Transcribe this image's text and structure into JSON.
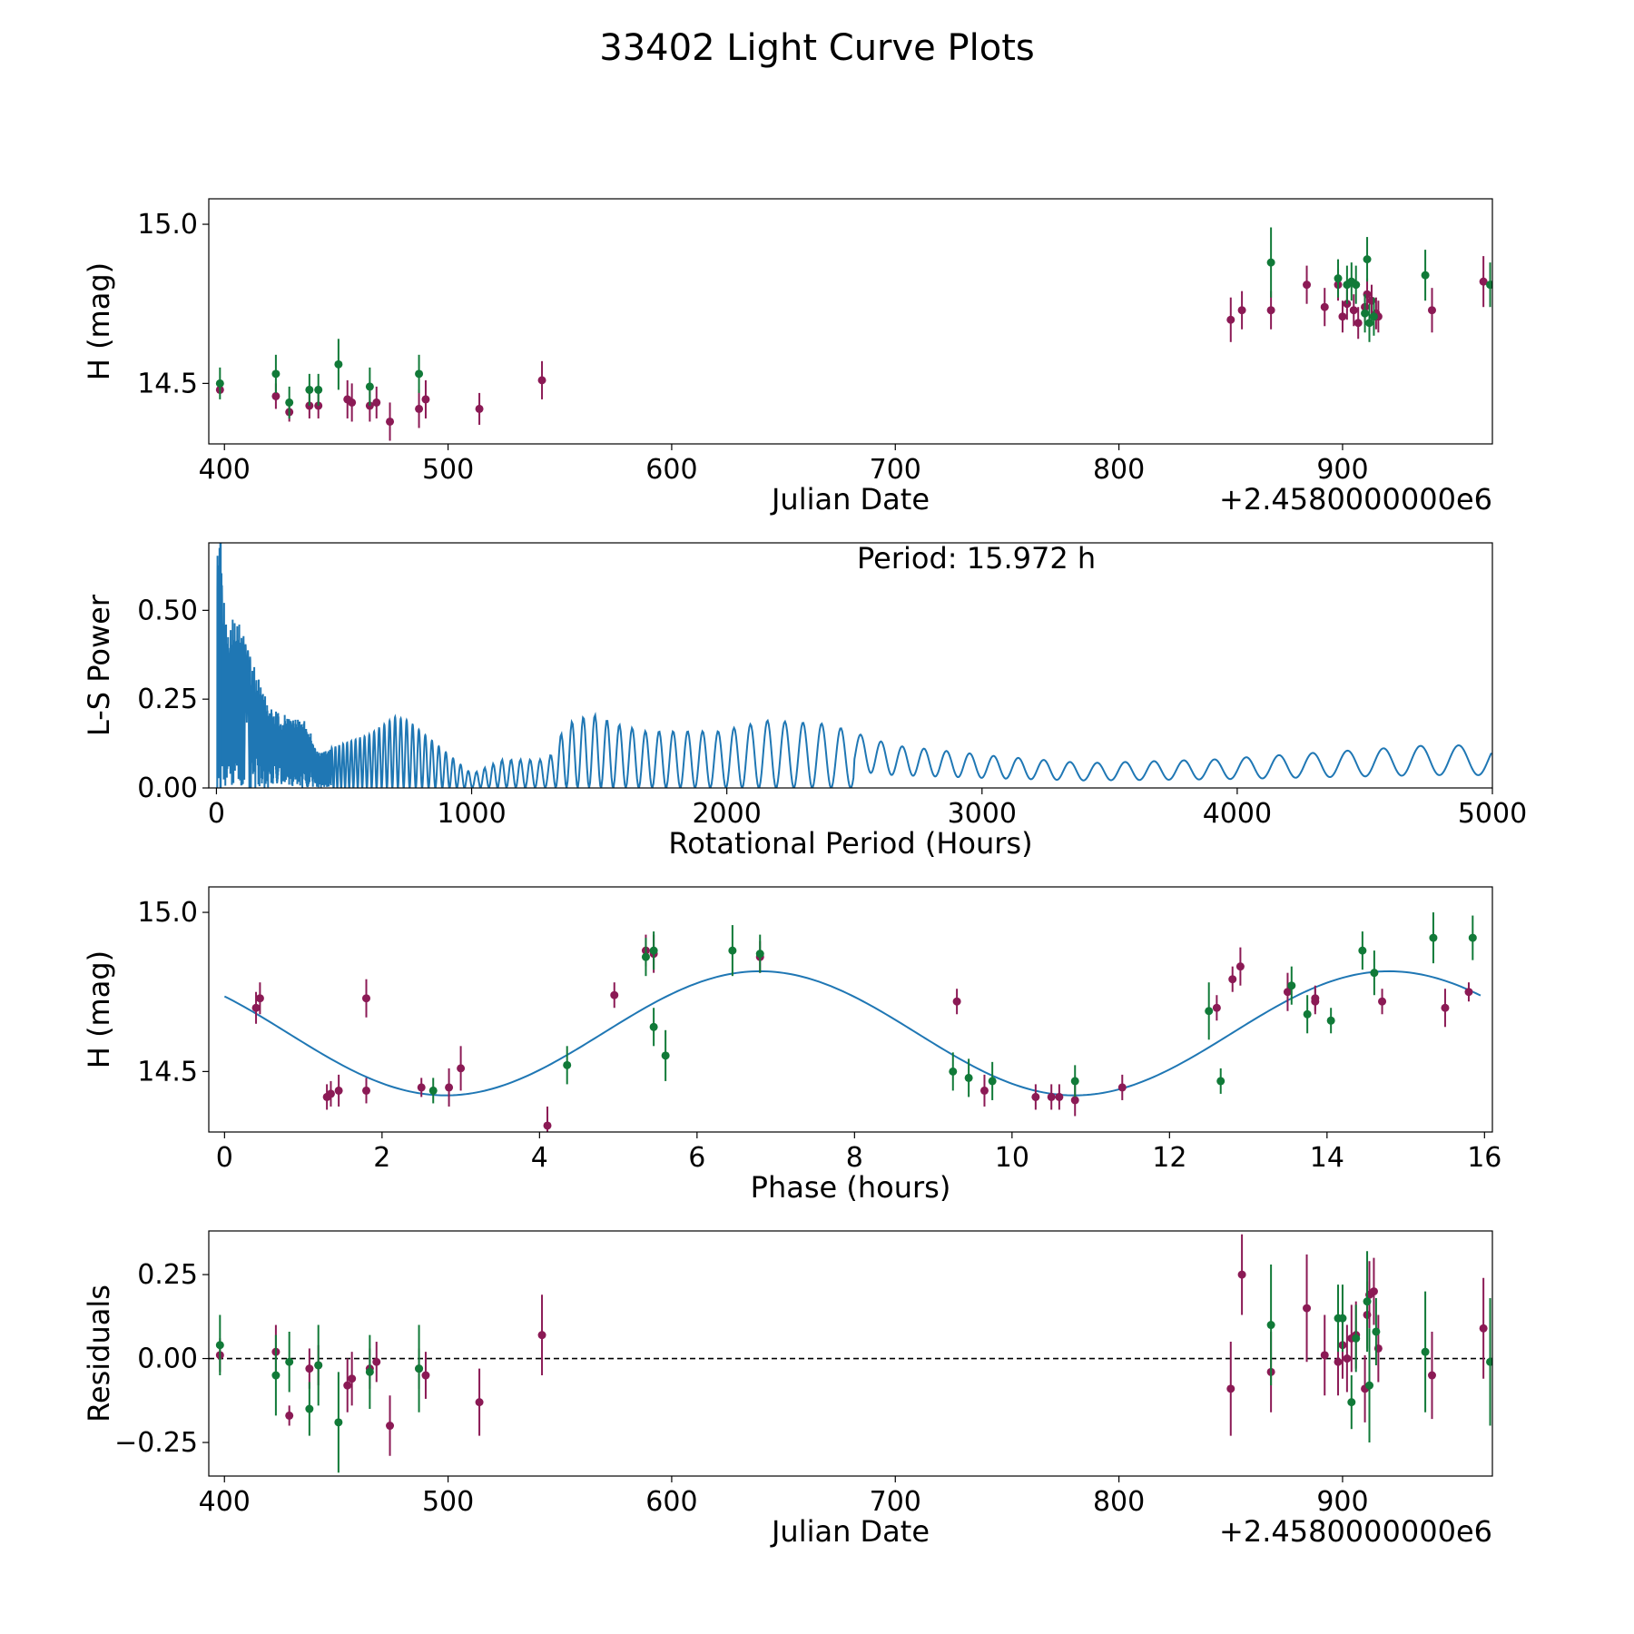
{
  "figure": {
    "title": "33402 Light Curve Plots"
  },
  "colors": {
    "magenta": "#8b1a55",
    "green": "#117a38",
    "model": "#1f77b4",
    "axes": "#000000"
  },
  "chart_data": [
    {
      "id": "lightcurve",
      "type": "scatter",
      "title": "",
      "xlabel": "Julian Date",
      "ylabel": "H (mag)",
      "offset_label": "+2.4580000000e6",
      "xlim": [
        393,
        967
      ],
      "ylim": [
        14.31,
        15.08
      ],
      "xticks": [
        400,
        500,
        600,
        700,
        800,
        900
      ],
      "xtick_labels": [
        "400",
        "500",
        "600",
        "700",
        "800",
        "900"
      ],
      "yticks": [
        14.5,
        15.0
      ],
      "ytick_labels": [
        "14.5",
        "15.0"
      ],
      "series": [
        {
          "name": "magenta",
          "color": "#8b1a55",
          "points": [
            [
              398,
              14.48,
              0.0
            ],
            [
              423,
              14.46,
              0.04
            ],
            [
              429,
              14.41,
              0.03
            ],
            [
              438,
              14.43,
              0.04
            ],
            [
              442,
              14.43,
              0.04
            ],
            [
              455,
              14.45,
              0.06
            ],
            [
              457,
              14.44,
              0.06
            ],
            [
              465,
              14.43,
              0.05
            ],
            [
              468,
              14.44,
              0.05
            ],
            [
              474,
              14.38,
              0.06
            ],
            [
              487,
              14.42,
              0.06
            ],
            [
              490,
              14.45,
              0.06
            ],
            [
              514,
              14.42,
              0.05
            ],
            [
              542,
              14.51,
              0.06
            ],
            [
              850,
              14.7,
              0.07
            ],
            [
              855,
              14.73,
              0.06
            ],
            [
              868,
              14.73,
              0.06
            ],
            [
              884,
              14.81,
              0.06
            ],
            [
              892,
              14.74,
              0.06
            ],
            [
              898,
              14.81,
              0.05
            ],
            [
              900,
              14.71,
              0.05
            ],
            [
              902,
              14.75,
              0.05
            ],
            [
              905,
              14.73,
              0.05
            ],
            [
              907,
              14.69,
              0.05
            ],
            [
              910,
              14.74,
              0.05
            ],
            [
              911,
              14.78,
              0.05
            ],
            [
              913,
              14.76,
              0.05
            ],
            [
              915,
              14.72,
              0.05
            ],
            [
              916,
              14.71,
              0.05
            ],
            [
              963,
              14.82,
              0.08
            ],
            [
              940,
              14.73,
              0.07
            ]
          ]
        },
        {
          "name": "green",
          "color": "#117a38",
          "points": [
            [
              398,
              14.5,
              0.05
            ],
            [
              423,
              14.53,
              0.06
            ],
            [
              429,
              14.44,
              0.05
            ],
            [
              438,
              14.48,
              0.05
            ],
            [
              442,
              14.48,
              0.05
            ],
            [
              451,
              14.56,
              0.08
            ],
            [
              465,
              14.49,
              0.06
            ],
            [
              487,
              14.53,
              0.06
            ],
            [
              868,
              14.88,
              0.11
            ],
            [
              898,
              14.83,
              0.06
            ],
            [
              902,
              14.81,
              0.06
            ],
            [
              904,
              14.82,
              0.06
            ],
            [
              906,
              14.81,
              0.06
            ],
            [
              910,
              14.72,
              0.06
            ],
            [
              911,
              14.89,
              0.07
            ],
            [
              912,
              14.69,
              0.06
            ],
            [
              914,
              14.71,
              0.06
            ],
            [
              937,
              14.84,
              0.08
            ],
            [
              966,
              14.81,
              0.07
            ]
          ]
        }
      ]
    },
    {
      "id": "periodogram",
      "type": "line",
      "title": "",
      "xlabel": "Rotational Period (Hours)",
      "ylabel": "L-S Power",
      "annotation": "Period: 15.972 h",
      "xlim": [
        -30,
        5000
      ],
      "ylim": [
        0,
        0.69
      ],
      "xticks": [
        0,
        1000,
        2000,
        3000,
        4000,
        5000
      ],
      "xtick_labels": [
        "0",
        "1000",
        "2000",
        "3000",
        "4000",
        "5000"
      ],
      "yticks": [
        0.0,
        0.25,
        0.5
      ],
      "ytick_labels": [
        "0.00",
        "0.25",
        "0.50"
      ],
      "series": [
        {
          "name": "L-S power",
          "color": "#1f77b4",
          "peaks": [
            [
              15.97,
              0.69
            ],
            [
              40,
              0.44
            ],
            [
              75,
              0.49
            ],
            [
              110,
              0.42
            ],
            [
              150,
              0.34
            ],
            [
              200,
              0.24
            ],
            [
              250,
              0.21
            ],
            [
              300,
              0.2
            ],
            [
              350,
              0.19
            ],
            [
              400,
              0.1
            ],
            [
              600,
              0.15
            ],
            [
              700,
              0.2
            ],
            [
              750,
              0.19
            ],
            [
              1000,
              0.04
            ],
            [
              1060,
              0.06
            ],
            [
              1120,
              0.08
            ],
            [
              1300,
              0.08
            ],
            [
              1370,
              0.18
            ],
            [
              1470,
              0.21
            ],
            [
              1570,
              0.18
            ],
            [
              1680,
              0.16
            ],
            [
              1810,
              0.16
            ],
            [
              1970,
              0.16
            ],
            [
              2160,
              0.19
            ],
            [
              2400,
              0.18
            ],
            [
              2650,
              0.12
            ],
            [
              3050,
              0.09
            ],
            [
              3400,
              0.07
            ],
            [
              3900,
              0.08
            ],
            [
              4750,
              0.12
            ]
          ]
        }
      ]
    },
    {
      "id": "phase",
      "type": "scatter",
      "title": "",
      "xlabel": "Phase (hours)",
      "ylabel": "H (mag)",
      "xlim": [
        -0.2,
        16.1
      ],
      "ylim": [
        14.31,
        15.08
      ],
      "xticks": [
        0,
        2,
        4,
        6,
        8,
        10,
        12,
        14,
        16
      ],
      "xtick_labels": [
        "0",
        "2",
        "4",
        "6",
        "8",
        "10",
        "12",
        "14",
        "16"
      ],
      "yticks": [
        14.5,
        15.0
      ],
      "ytick_labels": [
        "14.5",
        "15.0"
      ],
      "model": {
        "period": 15.972,
        "mean": 14.62,
        "amplitude": 0.195,
        "peak_phase": 6.8
      },
      "series": [
        {
          "name": "magenta",
          "color": "#8b1a55",
          "points": [
            [
              0.4,
              14.7,
              0.05
            ],
            [
              0.45,
              14.73,
              0.05
            ],
            [
              1.3,
              14.42,
              0.04
            ],
            [
              1.35,
              14.43,
              0.04
            ],
            [
              1.45,
              14.44,
              0.05
            ],
            [
              1.8,
              14.44,
              0.04
            ],
            [
              1.8,
              14.73,
              0.06
            ],
            [
              2.5,
              14.45,
              0.03
            ],
            [
              2.85,
              14.45,
              0.06
            ],
            [
              3.0,
              14.51,
              0.07
            ],
            [
              4.1,
              14.33,
              0.06
            ],
            [
              4.95,
              14.74,
              0.04
            ],
            [
              5.35,
              14.88,
              0.05
            ],
            [
              5.45,
              14.87,
              0.06
            ],
            [
              6.8,
              14.86,
              0.05
            ],
            [
              9.3,
              14.72,
              0.04
            ],
            [
              9.65,
              14.44,
              0.05
            ],
            [
              10.3,
              14.42,
              0.04
            ],
            [
              10.5,
              14.42,
              0.04
            ],
            [
              10.6,
              14.42,
              0.04
            ],
            [
              10.8,
              14.41,
              0.05
            ],
            [
              11.4,
              14.45,
              0.04
            ],
            [
              12.6,
              14.7,
              0.04
            ],
            [
              12.8,
              14.79,
              0.04
            ],
            [
              12.9,
              14.83,
              0.06
            ],
            [
              13.5,
              14.75,
              0.06
            ],
            [
              13.85,
              14.73,
              0.04
            ],
            [
              13.85,
              14.72,
              0.04
            ],
            [
              14.7,
              14.72,
              0.04
            ],
            [
              15.5,
              14.7,
              0.06
            ],
            [
              15.8,
              14.75,
              0.03
            ]
          ]
        },
        {
          "name": "green",
          "color": "#117a38",
          "points": [
            [
              2.65,
              14.44,
              0.04
            ],
            [
              4.35,
              14.52,
              0.06
            ],
            [
              5.35,
              14.86,
              0.06
            ],
            [
              5.45,
              14.88,
              0.06
            ],
            [
              5.45,
              14.64,
              0.06
            ],
            [
              5.6,
              14.55,
              0.08
            ],
            [
              6.45,
              14.88,
              0.08
            ],
            [
              6.8,
              14.87,
              0.06
            ],
            [
              9.25,
              14.5,
              0.06
            ],
            [
              9.45,
              14.48,
              0.06
            ],
            [
              9.75,
              14.47,
              0.06
            ],
            [
              10.8,
              14.47,
              0.05
            ],
            [
              12.5,
              14.69,
              0.09
            ],
            [
              12.65,
              14.47,
              0.04
            ],
            [
              13.55,
              14.77,
              0.06
            ],
            [
              13.75,
              14.68,
              0.06
            ],
            [
              14.05,
              14.66,
              0.04
            ],
            [
              14.45,
              14.88,
              0.06
            ],
            [
              14.6,
              14.81,
              0.07
            ],
            [
              15.35,
              14.92,
              0.08
            ],
            [
              15.85,
              14.92,
              0.07
            ]
          ]
        }
      ]
    },
    {
      "id": "residuals",
      "type": "scatter",
      "title": "",
      "xlabel": "Julian Date",
      "ylabel": "Residuals",
      "offset_label": "+2.4580000000e6",
      "xlim": [
        393,
        967
      ],
      "ylim": [
        -0.35,
        0.38
      ],
      "xticks": [
        400,
        500,
        600,
        700,
        800,
        900
      ],
      "xtick_labels": [
        "400",
        "500",
        "600",
        "700",
        "800",
        "900"
      ],
      "yticks": [
        -0.25,
        0.0,
        0.25
      ],
      "ytick_labels": [
        "−0.25",
        "0.00",
        "0.25"
      ],
      "reference_line": 0,
      "series": [
        {
          "name": "magenta",
          "color": "#8b1a55",
          "points": [
            [
              398,
              0.01,
              0.05
            ],
            [
              423,
              0.02,
              0.08
            ],
            [
              429,
              -0.17,
              0.03
            ],
            [
              438,
              -0.03,
              0.06
            ],
            [
              442,
              -0.02,
              0.06
            ],
            [
              455,
              -0.08,
              0.08
            ],
            [
              457,
              -0.06,
              0.08
            ],
            [
              465,
              -0.03,
              0.06
            ],
            [
              468,
              -0.01,
              0.06
            ],
            [
              474,
              -0.2,
              0.09
            ],
            [
              487,
              -0.03,
              0.06
            ],
            [
              490,
              -0.05,
              0.07
            ],
            [
              514,
              -0.13,
              0.1
            ],
            [
              542,
              0.07,
              0.12
            ],
            [
              850,
              -0.09,
              0.14
            ],
            [
              855,
              0.25,
              0.12
            ],
            [
              868,
              -0.04,
              0.12
            ],
            [
              884,
              0.15,
              0.16
            ],
            [
              892,
              0.01,
              0.12
            ],
            [
              898,
              -0.01,
              0.1
            ],
            [
              900,
              0.04,
              0.1
            ],
            [
              902,
              0.0,
              0.1
            ],
            [
              904,
              0.06,
              0.1
            ],
            [
              906,
              0.07,
              0.1
            ],
            [
              910,
              -0.09,
              0.1
            ],
            [
              911,
              0.13,
              0.1
            ],
            [
              912,
              0.19,
              0.1
            ],
            [
              914,
              0.2,
              0.1
            ],
            [
              916,
              0.03,
              0.1
            ],
            [
              963,
              0.09,
              0.15
            ],
            [
              940,
              -0.05,
              0.13
            ]
          ]
        },
        {
          "name": "green",
          "color": "#117a38",
          "points": [
            [
              398,
              0.04,
              0.09
            ],
            [
              423,
              -0.05,
              0.12
            ],
            [
              429,
              -0.01,
              0.09
            ],
            [
              438,
              -0.15,
              0.08
            ],
            [
              442,
              -0.02,
              0.12
            ],
            [
              451,
              -0.19,
              0.15
            ],
            [
              465,
              -0.04,
              0.11
            ],
            [
              487,
              -0.03,
              0.13
            ],
            [
              868,
              0.1,
              0.18
            ],
            [
              898,
              0.12,
              0.1
            ],
            [
              900,
              0.12,
              0.1
            ],
            [
              904,
              -0.13,
              0.08
            ],
            [
              906,
              0.06,
              0.1
            ],
            [
              911,
              0.17,
              0.15
            ],
            [
              912,
              -0.08,
              0.17
            ],
            [
              915,
              0.08,
              0.1
            ],
            [
              937,
              0.02,
              0.18
            ],
            [
              966,
              -0.01,
              0.19
            ]
          ]
        }
      ]
    }
  ]
}
